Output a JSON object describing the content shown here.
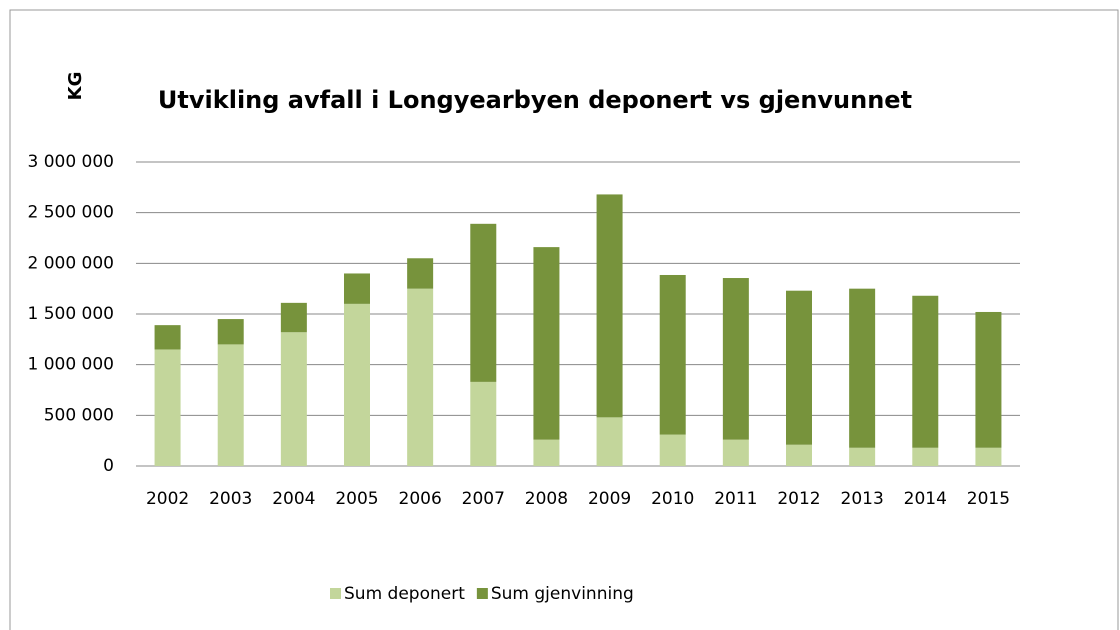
{
  "chart_data": {
    "type": "stacked_bar",
    "title": "Utvikling avfall i Longyearbyen deponert vs gjenvunnet",
    "y_label": "KG",
    "categories": [
      "2002",
      "2003",
      "2004",
      "2005",
      "2006",
      "2007",
      "2008",
      "2009",
      "2010",
      "2011",
      "2012",
      "2013",
      "2014",
      "2015"
    ],
    "series": [
      {
        "name": "Sum deponert",
        "color": "#c3d69b",
        "values": [
          1150000,
          1200000,
          1320000,
          1600000,
          1750000,
          830000,
          260000,
          480000,
          310000,
          260000,
          210000,
          180000,
          180000,
          180000
        ]
      },
      {
        "name": "Sum gjenvinning",
        "color": "#77933c",
        "values": [
          240000,
          250000,
          290000,
          300000,
          300000,
          1560000,
          1900000,
          2200000,
          1575000,
          1595000,
          1520000,
          1570000,
          1500000,
          1340000
        ]
      }
    ],
    "ylim": [
      0,
      3000000
    ],
    "yticks": [
      0,
      {
        "value": 500000,
        "label": "500 000"
      },
      {
        "value": 1000000,
        "label": "1 000 000"
      },
      {
        "value": 1500000,
        "label": "1 500 000"
      },
      {
        "value": 2000000,
        "label": "2 000 000"
      },
      {
        "value": 2500000,
        "label": "2 500 000"
      },
      {
        "value": 3000000,
        "label": "3 000 000"
      }
    ],
    "grid": true,
    "legend": "bottom"
  }
}
